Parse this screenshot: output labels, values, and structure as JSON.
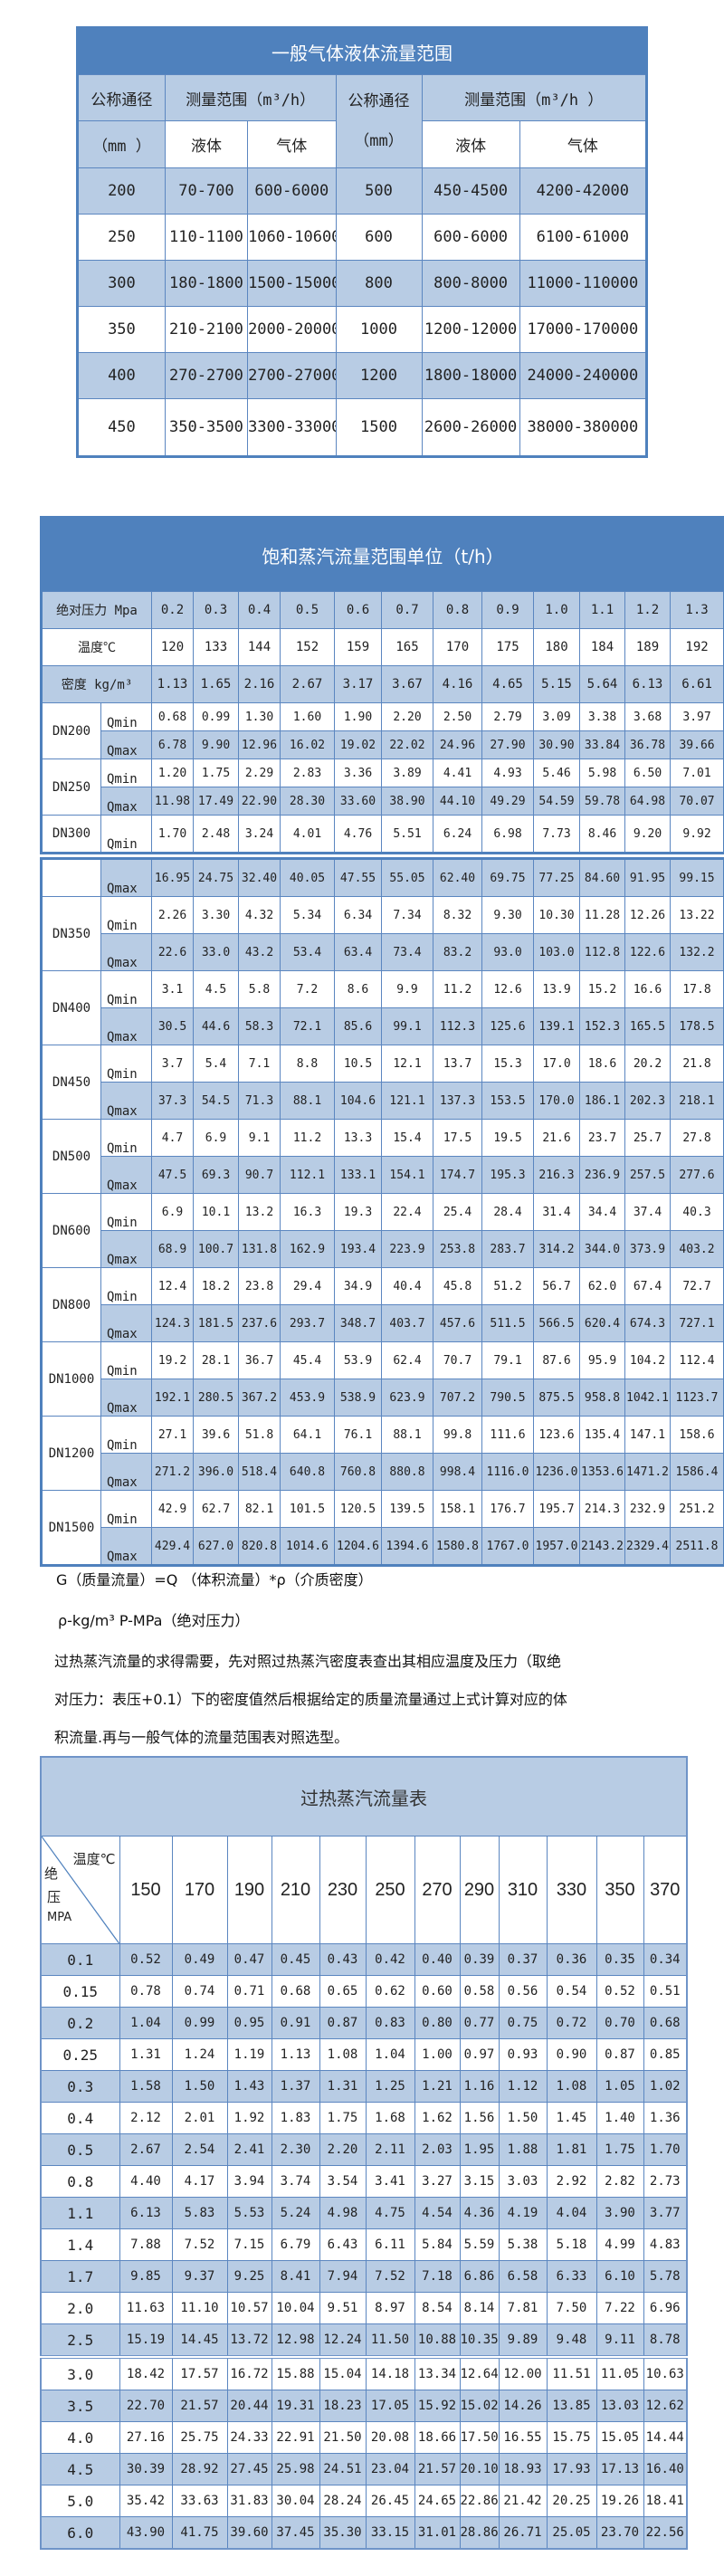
{
  "general_table": {
    "title": "一般气体液体流量范围",
    "nominal_diameter": "公称通径",
    "unit_mm_left": "（mm ）",
    "unit_mm_right": "（mm）",
    "range_left": "测量范围（m³/h）",
    "range_right": "测量范围（m³/h ）",
    "liquid": "液体",
    "gas": "气体",
    "rows": [
      [
        "200",
        "70-700",
        "600-6000",
        "500",
        "450-4500",
        "4200-42000"
      ],
      [
        "250",
        "110-1100",
        "1060-10600",
        "600",
        "600-6000",
        "6100-61000"
      ],
      [
        "300",
        "180-1800",
        "1500-15000",
        "800",
        "800-8000",
        "11000-110000"
      ],
      [
        "350",
        "210-2100",
        "2000-20000",
        "1000",
        "1200-12000",
        "17000-170000"
      ],
      [
        "400",
        "270-2700",
        "2700-27000",
        "1200",
        "1800-18000",
        "24000-240000"
      ],
      [
        "450",
        "350-3500",
        "3300-33000",
        "1500",
        "2600-26000",
        "38000-380000"
      ]
    ]
  },
  "saturated_table": {
    "title": "饱和蒸汽流量范围单位（t/h）",
    "pressure_label": "绝对压力 Mpa",
    "pressures": [
      "0.2",
      "0.3",
      "0.4",
      "0.5",
      "0.6",
      "0.7",
      "0.8",
      "0.9",
      "1.0",
      "1.1",
      "1.2",
      "1.3"
    ],
    "temperature_label": "温度℃",
    "temperatures": [
      "120",
      "133",
      "144",
      "152",
      "159",
      "165",
      "170",
      "175",
      "180",
      "184",
      "189",
      "192"
    ],
    "density_label": "密度 kg/m³",
    "densities": [
      "1.13",
      "1.65",
      "2.16",
      "2.67",
      "3.17",
      "3.67",
      "4.16",
      "4.65",
      "5.15",
      "5.64",
      "6.13",
      "6.61"
    ],
    "qmin_label": "Qmin",
    "qmax_label": "Qmax",
    "groups": [
      {
        "dn": "DN200",
        "qmin": [
          "0.68",
          "0.99",
          "1.30",
          "1.60",
          "1.90",
          "2.20",
          "2.50",
          "2.79",
          "3.09",
          "3.38",
          "3.68",
          "3.97"
        ],
        "qmax": [
          "6.78",
          "9.90",
          "12.96",
          "16.02",
          "19.02",
          "22.02",
          "24.96",
          "27.90",
          "30.90",
          "33.84",
          "36.78",
          "39.66"
        ]
      },
      {
        "dn": "DN250",
        "qmin": [
          "1.20",
          "1.75",
          "2.29",
          "2.83",
          "3.36",
          "3.89",
          "4.41",
          "4.93",
          "5.46",
          "5.98",
          "6.50",
          "7.01"
        ],
        "qmax": [
          "11.98",
          "17.49",
          "22.90",
          "28.30",
          "33.60",
          "38.90",
          "44.10",
          "49.29",
          "54.59",
          "59.78",
          "64.98",
          "70.07"
        ]
      },
      {
        "dn": "DN300",
        "qmin": [
          "1.70",
          "2.48",
          "3.24",
          "4.01",
          "4.76",
          "5.51",
          "6.24",
          "6.98",
          "7.73",
          "8.46",
          "9.20",
          "9.92"
        ],
        "qmax": [
          "16.95",
          "24.75",
          "32.40",
          "40.05",
          "47.55",
          "55.05",
          "62.40",
          "69.75",
          "77.25",
          "84.60",
          "91.95",
          "99.15"
        ]
      },
      {
        "dn": "DN350",
        "qmin": [
          "2.26",
          "3.30",
          "4.32",
          "5.34",
          "6.34",
          "7.34",
          "8.32",
          "9.30",
          "10.30",
          "11.28",
          "12.26",
          "13.22"
        ],
        "qmax": [
          "22.6",
          "33.0",
          "43.2",
          "53.4",
          "63.4",
          "73.4",
          "83.2",
          "93.0",
          "103.0",
          "112.8",
          "122.6",
          "132.2"
        ]
      },
      {
        "dn": "DN400",
        "qmin": [
          "3.1",
          "4.5",
          "5.8",
          "7.2",
          "8.6",
          "9.9",
          "11.2",
          "12.6",
          "13.9",
          "15.2",
          "16.6",
          "17.8"
        ],
        "qmax": [
          "30.5",
          "44.6",
          "58.3",
          "72.1",
          "85.6",
          "99.1",
          "112.3",
          "125.6",
          "139.1",
          "152.3",
          "165.5",
          "178.5"
        ]
      },
      {
        "dn": "DN450",
        "qmin": [
          "3.7",
          "5.4",
          "7.1",
          "8.8",
          "10.5",
          "12.1",
          "13.7",
          "15.3",
          "17.0",
          "18.6",
          "20.2",
          "21.8"
        ],
        "qmax": [
          "37.3",
          "54.5",
          "71.3",
          "88.1",
          "104.6",
          "121.1",
          "137.3",
          "153.5",
          "170.0",
          "186.1",
          "202.3",
          "218.1"
        ]
      },
      {
        "dn": "DN500",
        "qmin": [
          "4.7",
          "6.9",
          "9.1",
          "11.2",
          "13.3",
          "15.4",
          "17.5",
          "19.5",
          "21.6",
          "23.7",
          "25.7",
          "27.8"
        ],
        "qmax": [
          "47.5",
          "69.3",
          "90.7",
          "112.1",
          "133.1",
          "154.1",
          "174.7",
          "195.3",
          "216.3",
          "236.9",
          "257.5",
          "277.6"
        ]
      },
      {
        "dn": "DN600",
        "qmin": [
          "6.9",
          "10.1",
          "13.2",
          "16.3",
          "19.3",
          "22.4",
          "25.4",
          "28.4",
          "31.4",
          "34.4",
          "37.4",
          "40.3"
        ],
        "qmax": [
          "68.9",
          "100.7",
          "131.8",
          "162.9",
          "193.4",
          "223.9",
          "253.8",
          "283.7",
          "314.2",
          "344.0",
          "373.9",
          "403.2"
        ]
      },
      {
        "dn": "DN800",
        "qmin": [
          "12.4",
          "18.2",
          "23.8",
          "29.4",
          "34.9",
          "40.4",
          "45.8",
          "51.2",
          "56.7",
          "62.0",
          "67.4",
          "72.7"
        ],
        "qmax": [
          "124.3",
          "181.5",
          "237.6",
          "293.7",
          "348.7",
          "403.7",
          "457.6",
          "511.5",
          "566.5",
          "620.4",
          "674.3",
          "727.1"
        ]
      },
      {
        "dn": "DN1000",
        "qmin": [
          "19.2",
          "28.1",
          "36.7",
          "45.4",
          "53.9",
          "62.4",
          "70.7",
          "79.1",
          "87.6",
          "95.9",
          "104.2",
          "112.4"
        ],
        "qmax": [
          "192.1",
          "280.5",
          "367.2",
          "453.9",
          "538.9",
          "623.9",
          "707.2",
          "790.5",
          "875.5",
          "958.8",
          "1042.1",
          "1123.7"
        ]
      },
      {
        "dn": "DN1200",
        "qmin": [
          "27.1",
          "39.6",
          "51.8",
          "64.1",
          "76.1",
          "88.1",
          "99.8",
          "111.6",
          "123.6",
          "135.4",
          "147.1",
          "158.6"
        ],
        "qmax": [
          "271.2",
          "396.0",
          "518.4",
          "640.8",
          "760.8",
          "880.8",
          "998.4",
          "1116.0",
          "1236.0",
          "1353.6",
          "1471.2",
          "1586.4"
        ]
      },
      {
        "dn": "DN1500",
        "qmin": [
          "42.9",
          "62.7",
          "82.1",
          "101.5",
          "120.5",
          "139.5",
          "158.1",
          "176.7",
          "195.7",
          "214.3",
          "232.9",
          "251.2"
        ],
        "qmax": [
          "429.4",
          "627.0",
          "820.8",
          "1014.6",
          "1204.6",
          "1394.6",
          "1580.8",
          "1767.0",
          "1957.0",
          "2143.2",
          "2329.4",
          "2511.8"
        ]
      }
    ]
  },
  "notes": {
    "formula": "G（质量流量）=Q （体积流量）*ρ（介质密度）",
    "units": "ρ-kg/m³ P-MPa（绝对压力）",
    "explanation_line1": "过热蒸汽流量的求得需要，先对照过热蒸汽密度表查出其相应温度及压力（取绝",
    "explanation_line2": "对压力：表压+0.1）下的密度值然后根据给定的质量流量通过上式计算对应的体",
    "explanation_line3": "积流量.再与一般气体的流量范围表对照选型。"
  },
  "superheated_table": {
    "title": "过热蒸汽流量表",
    "corner_temperature": "温度℃",
    "corner_pressure_1": "绝",
    "corner_pressure_2": "压",
    "corner_pressure_unit": "MPA",
    "temperatures": [
      "150",
      "170",
      "190",
      "210",
      "230",
      "250",
      "270",
      "290",
      "310",
      "330",
      "350",
      "370"
    ],
    "rows": [
      {
        "p": "0.1",
        "v": [
          "0.52",
          "0.49",
          "0.47",
          "0.45",
          "0.43",
          "0.42",
          "0.40",
          "0.39",
          "0.37",
          "0.36",
          "0.35",
          "0.34"
        ]
      },
      {
        "p": "0.15",
        "v": [
          "0.78",
          "0.74",
          "0.71",
          "0.68",
          "0.65",
          "0.62",
          "0.60",
          "0.58",
          "0.56",
          "0.54",
          "0.52",
          "0.51"
        ]
      },
      {
        "p": "0.2",
        "v": [
          "1.04",
          "0.99",
          "0.95",
          "0.91",
          "0.87",
          "0.83",
          "0.80",
          "0.77",
          "0.75",
          "0.72",
          "0.70",
          "0.68"
        ]
      },
      {
        "p": "0.25",
        "v": [
          "1.31",
          "1.24",
          "1.19",
          "1.13",
          "1.08",
          "1.04",
          "1.00",
          "0.97",
          "0.93",
          "0.90",
          "0.87",
          "0.85"
        ]
      },
      {
        "p": "0.3",
        "v": [
          "1.58",
          "1.50",
          "1.43",
          "1.37",
          "1.31",
          "1.25",
          "1.21",
          "1.16",
          "1.12",
          "1.08",
          "1.05",
          "1.02"
        ]
      },
      {
        "p": "0.4",
        "v": [
          "2.12",
          "2.01",
          "1.92",
          "1.83",
          "1.75",
          "1.68",
          "1.62",
          "1.56",
          "1.50",
          "1.45",
          "1.40",
          "1.36"
        ]
      },
      {
        "p": "0.5",
        "v": [
          "2.67",
          "2.54",
          "2.41",
          "2.30",
          "2.20",
          "2.11",
          "2.03",
          "1.95",
          "1.88",
          "1.81",
          "1.75",
          "1.70"
        ]
      },
      {
        "p": "0.8",
        "v": [
          "4.40",
          "4.17",
          "3.94",
          "3.74",
          "3.54",
          "3.41",
          "3.27",
          "3.15",
          "3.03",
          "2.92",
          "2.82",
          "2.73"
        ]
      },
      {
        "p": "1.1",
        "v": [
          "6.13",
          "5.83",
          "5.53",
          "5.24",
          "4.98",
          "4.75",
          "4.54",
          "4.36",
          "4.19",
          "4.04",
          "3.90",
          "3.77"
        ]
      },
      {
        "p": "1.4",
        "v": [
          "7.88",
          "7.52",
          "7.15",
          "6.79",
          "6.43",
          "6.11",
          "5.84",
          "5.59",
          "5.38",
          "5.18",
          "4.99",
          "4.83"
        ]
      },
      {
        "p": "1.7",
        "v": [
          "9.85",
          "9.37",
          "9.25",
          "8.41",
          "7.94",
          "7.52",
          "7.18",
          "6.86",
          "6.58",
          "6.33",
          "6.10",
          "5.78"
        ]
      },
      {
        "p": "2.0",
        "v": [
          "11.63",
          "11.10",
          "10.57",
          "10.04",
          "9.51",
          "8.97",
          "8.54",
          "8.14",
          "7.81",
          "7.50",
          "7.22",
          "6.96"
        ]
      },
      {
        "p": "2.5",
        "v": [
          "15.19",
          "14.45",
          "13.72",
          "12.98",
          "12.24",
          "11.50",
          "10.88",
          "10.35",
          "9.89",
          "9.48",
          "9.11",
          "8.78"
        ]
      },
      {
        "p": "3.0",
        "v": [
          "18.42",
          "17.57",
          "16.72",
          "15.88",
          "15.04",
          "14.18",
          "13.34",
          "12.64",
          "12.00",
          "11.51",
          "11.05",
          "10.63"
        ]
      },
      {
        "p": "3.5",
        "v": [
          "22.70",
          "21.57",
          "20.44",
          "19.31",
          "18.23",
          "17.05",
          "15.92",
          "15.02",
          "14.26",
          "13.85",
          "13.03",
          "12.62"
        ]
      },
      {
        "p": "4.0",
        "v": [
          "27.16",
          "25.75",
          "24.33",
          "22.91",
          "21.50",
          "20.08",
          "18.66",
          "17.50",
          "16.55",
          "15.75",
          "15.05",
          "14.44"
        ]
      },
      {
        "p": "4.5",
        "v": [
          "30.39",
          "28.92",
          "27.45",
          "25.98",
          "24.51",
          "23.04",
          "21.57",
          "20.10",
          "18.93",
          "17.93",
          "17.13",
          "16.40"
        ]
      },
      {
        "p": "5.0",
        "v": [
          "35.42",
          "33.63",
          "31.83",
          "30.04",
          "28.24",
          "26.45",
          "24.65",
          "22.86",
          "21.42",
          "20.25",
          "19.26",
          "18.41"
        ]
      },
      {
        "p": "6.0",
        "v": [
          "43.90",
          "41.75",
          "39.60",
          "37.45",
          "35.30",
          "33.15",
          "31.01",
          "28.86",
          "26.71",
          "25.05",
          "23.70",
          "22.56"
        ]
      }
    ]
  },
  "colors": {
    "header_blue": "#4f81bd",
    "row_blue": "#b8cce4",
    "border": "#5b86c0"
  }
}
